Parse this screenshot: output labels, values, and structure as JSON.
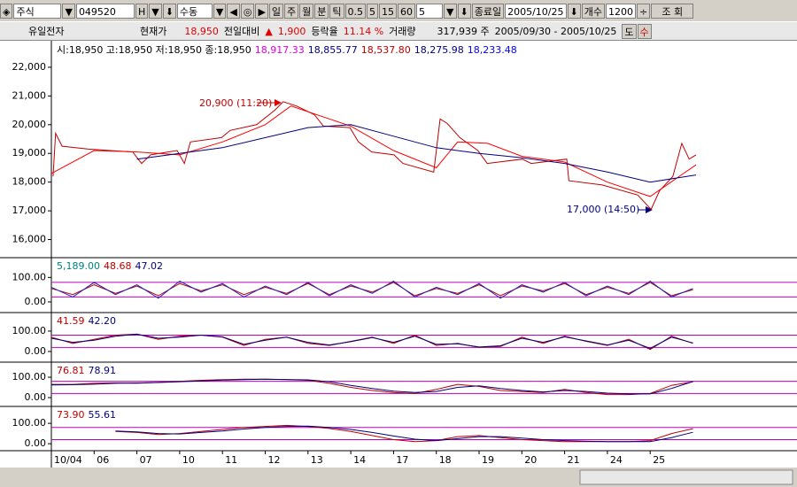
{
  "toolbar": {
    "icon": "◈",
    "market": "주식",
    "code": "049520",
    "h": "H",
    "mode": "수동",
    "periods": [
      "일",
      "주",
      "월",
      "분",
      "틱",
      "0.5",
      "5",
      "15",
      "60"
    ],
    "count_sel": "5",
    "end_label": "종료일",
    "end_date": "2005/10/25",
    "count_label": "개수",
    "count": "1200",
    "query": "조 회"
  },
  "info": {
    "name": "유일전자",
    "price_label": "현재가",
    "price": "18,950",
    "change_label": "전일대비",
    "arrow": "▲",
    "change": "1,900",
    "rate_label": "등락율",
    "rate": "11.14 %",
    "volume_label": "거래량",
    "volume": "317,939 주",
    "range": "2005/09/30 - 2005/10/25",
    "btn1": "도",
    "btn2": "수"
  },
  "price_chart": {
    "type": "line",
    "legend_ohlc": "시:18,950 고:18,950 저:18,950 종:18,950",
    "legend": [
      {
        "text": "18,917.33",
        "color": "#e000e0"
      },
      {
        "text": "18,855.77",
        "color": "#000080"
      },
      {
        "text": "18,537.80",
        "color": "#c00000"
      },
      {
        "text": "18,275.98",
        "color": "#000080"
      },
      {
        "text": "18,233.48",
        "color": "#0000ff"
      }
    ],
    "ylim": [
      15400,
      22800
    ],
    "yticks": [
      {
        "value": 16000,
        "label": "16,000"
      },
      {
        "value": 17000,
        "label": "17,000"
      },
      {
        "value": 18000,
        "label": "18,000"
      },
      {
        "value": 19000,
        "label": "19,000"
      },
      {
        "value": 20000,
        "label": "20,000"
      },
      {
        "value": 21000,
        "label": "21,000"
      },
      {
        "value": 22000,
        "label": "22,000"
      }
    ],
    "annotations": [
      {
        "text": "20,900 (11:20)",
        "color": "#c00000"
      },
      {
        "text": "17,000 (14:50)",
        "color": "#000080"
      }
    ],
    "series": [
      {
        "color": "#c00000",
        "x": [
          0.04,
          0.1,
          0.25,
          0.87,
          1.9,
          2.11,
          2.32,
          2.94,
          3.11,
          3.25,
          3.98,
          4.18,
          4.8,
          5.22,
          5.42,
          5.73,
          6.15,
          6.36,
          6.98,
          7.18,
          7.49,
          8.01,
          8.22,
          8.94,
          9.09,
          9.25,
          9.55,
          9.97,
          10.19,
          11.01,
          11.22,
          12.05,
          12.1,
          12.88,
          13.71,
          14.02,
          14.22,
          14.53,
          14.74,
          14.91,
          15.07
        ],
        "values": [
          18200,
          19700,
          19250,
          19150,
          19050,
          18650,
          18950,
          19100,
          18650,
          19400,
          19550,
          19800,
          20000,
          20500,
          20800,
          20650,
          20350,
          19950,
          19900,
          19400,
          19050,
          18950,
          18650,
          18350,
          20200,
          20050,
          19550,
          19100,
          18650,
          18800,
          18650,
          18800,
          18050,
          17900,
          17550,
          17050,
          17700,
          18200,
          19350,
          18800,
          18950
        ]
      },
      {
        "color": "#ff0000",
        "x": [
          0,
          1,
          2,
          3,
          4,
          5,
          5.6,
          6.5,
          7,
          8,
          9,
          9.5,
          10.2,
          11,
          12,
          13,
          14,
          15.07
        ],
        "values": [
          18300,
          19100,
          19050,
          18950,
          19400,
          20000,
          20650,
          20200,
          19950,
          19100,
          18500,
          19400,
          19350,
          18900,
          18700,
          18000,
          17500,
          18600
        ]
      },
      {
        "color": "#000080",
        "x": [
          2,
          4,
          6,
          7,
          8,
          9,
          10,
          11,
          12,
          13,
          14,
          15.07
        ],
        "values": [
          18800,
          19200,
          19900,
          20000,
          19600,
          19200,
          19000,
          18850,
          18650,
          18350,
          18000,
          18250
        ]
      }
    ]
  },
  "indicator_x": [
    0,
    0.5,
    1,
    1.5,
    2,
    2.5,
    3,
    3.5,
    4,
    4.5,
    5,
    5.5,
    6,
    6.5,
    7,
    7.5,
    8,
    8.5,
    9,
    9.5,
    10,
    10.5,
    11,
    11.5,
    12,
    12.5,
    13,
    13.5,
    14,
    14.5,
    15
  ],
  "indicators": [
    {
      "legend": [
        {
          "text": "5,189.00",
          "color": "#008080"
        },
        {
          "text": "48.68",
          "color": "#c00000"
        },
        {
          "text": "47.02",
          "color": "#000080"
        }
      ],
      "ylim": [
        -40,
        170
      ],
      "yticks": [
        {
          "value": 0,
          "label": "0.00"
        },
        {
          "value": 100,
          "label": "100.00"
        }
      ],
      "hlines": [
        80,
        20
      ],
      "series": [
        {
          "color": "#c00000",
          "values": [
            55,
            30,
            70,
            35,
            65,
            25,
            75,
            45,
            70,
            30,
            60,
            35,
            75,
            30,
            65,
            40,
            80,
            25,
            55,
            35,
            70,
            25,
            65,
            45,
            75,
            30,
            60,
            35,
            80,
            25,
            50
          ]
        },
        {
          "color": "#2020c0",
          "values": [
            60,
            20,
            80,
            30,
            70,
            15,
            85,
            40,
            75,
            20,
            65,
            30,
            80,
            25,
            70,
            35,
            85,
            20,
            60,
            30,
            75,
            15,
            70,
            40,
            80,
            25,
            65,
            30,
            85,
            20,
            55
          ]
        }
      ]
    },
    {
      "legend": [
        {
          "text": "41.59",
          "color": "#c00000"
        },
        {
          "text": "42.20",
          "color": "#000080"
        }
      ],
      "ylim": [
        -48,
        178
      ],
      "yticks": [
        {
          "value": 0,
          "label": "0.00"
        },
        {
          "value": 100,
          "label": "100.00"
        }
      ],
      "hlines": [
        80,
        20
      ],
      "series": [
        {
          "color": "#c00000",
          "values": [
            70,
            40,
            60,
            80,
            85,
            60,
            75,
            80,
            70,
            30,
            60,
            70,
            40,
            30,
            50,
            70,
            40,
            80,
            30,
            40,
            20,
            25,
            70,
            40,
            75,
            50,
            30,
            60,
            10,
            75,
            40
          ]
        },
        {
          "color": "#000080",
          "values": [
            65,
            45,
            55,
            75,
            85,
            65,
            70,
            80,
            72,
            35,
            55,
            70,
            45,
            32,
            48,
            68,
            45,
            75,
            35,
            38,
            22,
            28,
            65,
            45,
            72,
            52,
            32,
            55,
            15,
            70,
            42
          ]
        }
      ]
    },
    {
      "legend": [
        {
          "text": "76.81",
          "color": "#c00000"
        },
        {
          "text": "78.91",
          "color": "#000080"
        }
      ],
      "ylim": [
        -39,
        161
      ],
      "yticks": [
        {
          "value": 0,
          "label": "0.00"
        },
        {
          "value": 100,
          "label": "100.00"
        }
      ],
      "hlines": [
        80,
        20
      ],
      "series": [
        {
          "color": "#c00000",
          "values": [
            65,
            65,
            70,
            72,
            70,
            75,
            80,
            85,
            88,
            90,
            90,
            88,
            85,
            70,
            50,
            35,
            25,
            20,
            40,
            65,
            55,
            35,
            30,
            25,
            40,
            25,
            15,
            15,
            20,
            60,
            77
          ]
        },
        {
          "color": "#000080",
          "values": [
            62,
            63,
            66,
            70,
            72,
            74,
            78,
            82,
            86,
            88,
            90,
            89,
            87,
            78,
            60,
            45,
            32,
            25,
            30,
            50,
            58,
            45,
            35,
            28,
            35,
            30,
            22,
            18,
            18,
            45,
            79
          ]
        }
      ]
    },
    {
      "legend": [
        {
          "text": "73.90",
          "color": "#c00000"
        },
        {
          "text": "55.61",
          "color": "#000080"
        }
      ],
      "ylim": [
        -30,
        170
      ],
      "yticks": [
        {
          "value": 0,
          "label": "0.00"
        },
        {
          "value": 100,
          "label": "100.00"
        }
      ],
      "hlines": [
        80,
        20
      ],
      "series": [
        {
          "color": "#c00000",
          "values": [
            null,
            null,
            null,
            60,
            55,
            45,
            50,
            60,
            70,
            80,
            85,
            90,
            85,
            75,
            60,
            40,
            20,
            10,
            15,
            35,
            40,
            30,
            20,
            15,
            10,
            10,
            10,
            10,
            15,
            50,
            74
          ]
        },
        {
          "color": "#000080",
          "values": [
            null,
            null,
            null,
            62,
            58,
            50,
            48,
            55,
            62,
            72,
            80,
            85,
            86,
            80,
            70,
            55,
            38,
            22,
            15,
            25,
            35,
            35,
            28,
            20,
            15,
            12,
            10,
            10,
            10,
            30,
            56
          ]
        }
      ]
    }
  ],
  "x_axis": {
    "labels": [
      "10/04",
      "06",
      "07",
      "10",
      "11",
      "12",
      "13",
      "14",
      "17",
      "18",
      "19",
      "20",
      "21",
      "24",
      "25"
    ]
  }
}
